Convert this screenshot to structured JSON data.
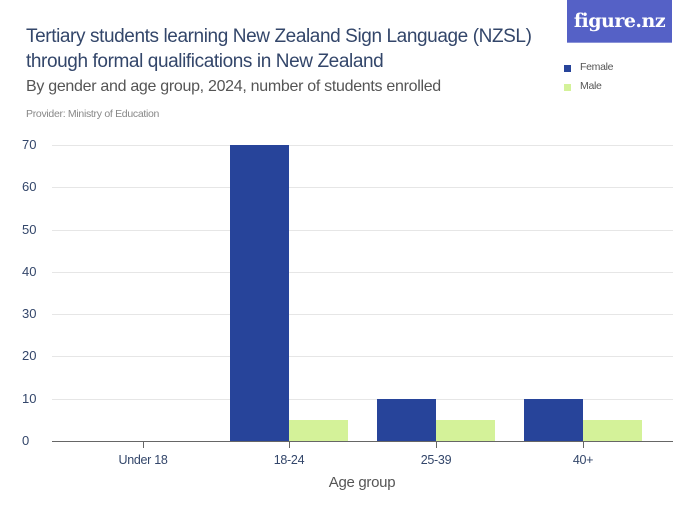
{
  "header": {
    "title": "Tertiary students learning New Zealand Sign Language (NZSL) through formal qualifications in New Zealand",
    "subtitle": "By gender and age group, 2024, number of students enrolled",
    "provider": "Provider: Ministry of Education",
    "logo": "figure.nz"
  },
  "legend": {
    "items": [
      {
        "label": "Female",
        "color": "#27449a"
      },
      {
        "label": "Male",
        "color": "#d4f299"
      }
    ]
  },
  "axes": {
    "y_ticks": [
      "70",
      "60",
      "50",
      "40",
      "30",
      "20",
      "10",
      "0"
    ],
    "x_title": "Age group"
  },
  "chart_data": {
    "type": "bar",
    "title": "Tertiary students learning New Zealand Sign Language (NZSL) through formal qualifications in New Zealand",
    "subtitle": "By gender and age group, 2024, number of students enrolled",
    "categories": [
      "Under 18",
      "18-24",
      "25-39",
      "40+"
    ],
    "series": [
      {
        "name": "Female",
        "color": "#27449a",
        "values": [
          0,
          70,
          10,
          10
        ]
      },
      {
        "name": "Male",
        "color": "#d4f299",
        "values": [
          0,
          5,
          5,
          5
        ]
      }
    ],
    "xlabel": "Age group",
    "ylabel": "",
    "ylim": [
      0,
      70
    ],
    "y_ticks": [
      0,
      10,
      20,
      30,
      40,
      50,
      60,
      70
    ],
    "grid": true,
    "legend_position": "top-right"
  }
}
